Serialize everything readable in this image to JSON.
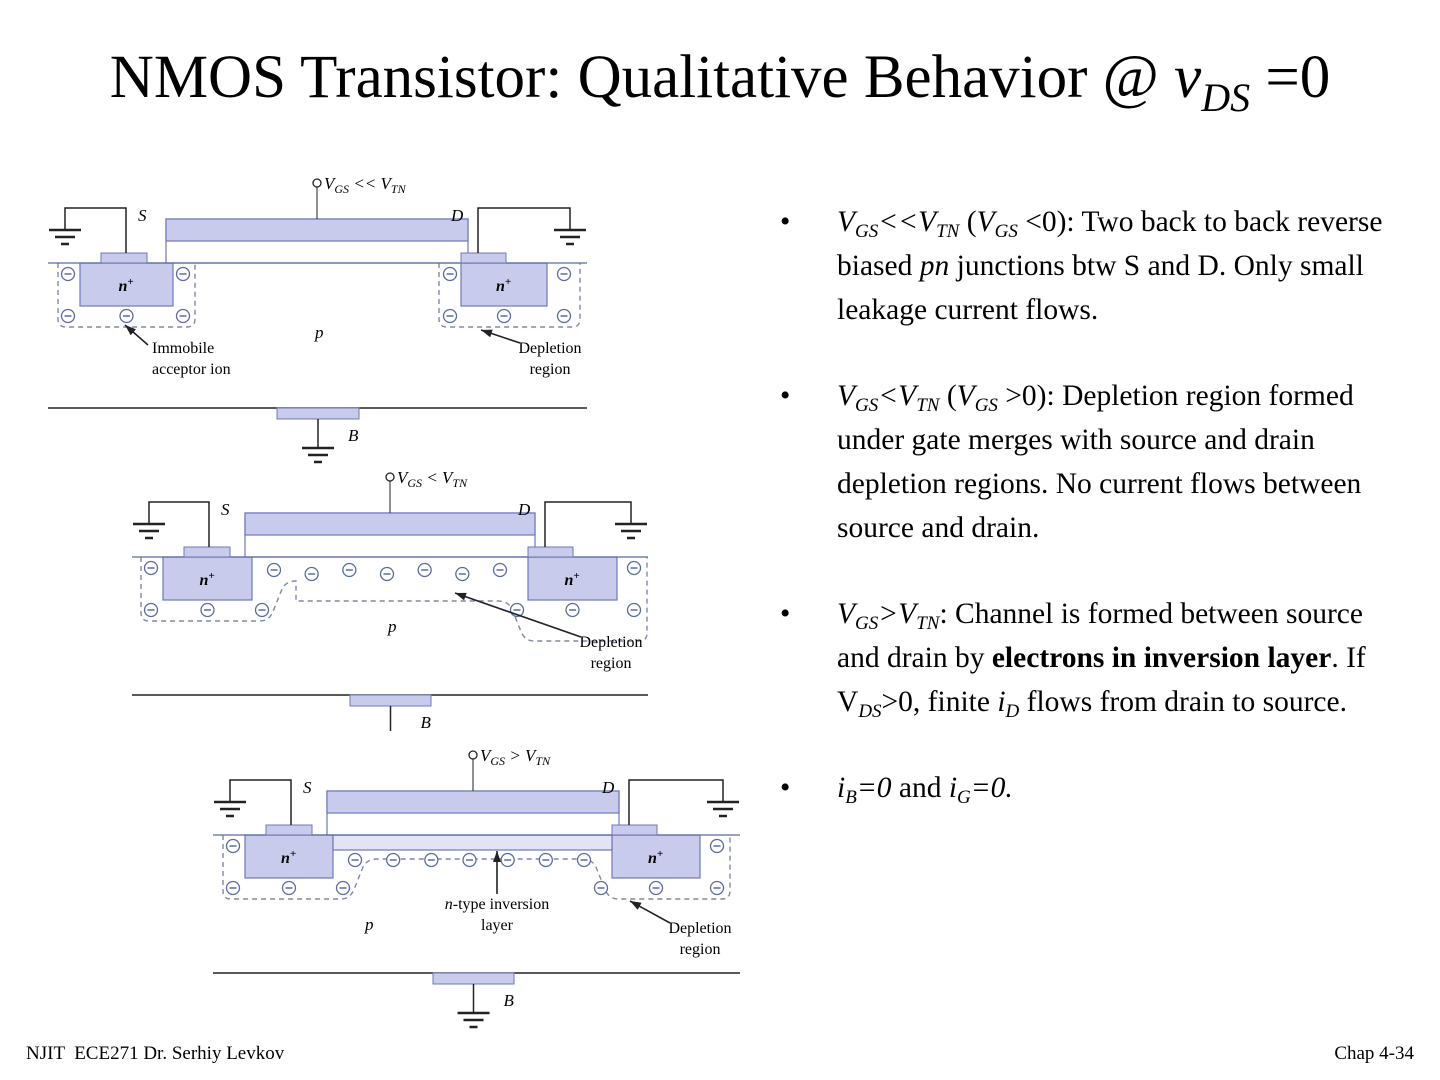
{
  "title": {
    "runs": [
      {
        "t": "NMOS Transistor: Qualitative Behavior @ ",
        "s": ""
      },
      {
        "t": "v",
        "s": "i"
      },
      {
        "t": "DS",
        "s": "isub"
      },
      {
        "t": " =0",
        "s": ""
      }
    ]
  },
  "bullets": [
    {
      "marker": "•",
      "runs": [
        {
          "t": "V",
          "s": "i"
        },
        {
          "t": "GS",
          "s": "isub"
        },
        {
          "t": "<<V",
          "s": "i"
        },
        {
          "t": "TN",
          "s": "isub"
        },
        {
          "t": "  (",
          "s": ""
        },
        {
          "t": "V",
          "s": "i"
        },
        {
          "t": "GS",
          "s": "isub"
        },
        {
          "t": " <0): Two back to back reverse biased ",
          "s": ""
        },
        {
          "t": "pn",
          "s": "i"
        },
        {
          "t": " junctions btw S and D. Only small leakage current flows.",
          "s": ""
        }
      ]
    },
    {
      "marker": "•",
      "runs": [
        {
          "t": "V",
          "s": "i"
        },
        {
          "t": "GS",
          "s": "isub"
        },
        {
          "t": "<V",
          "s": "i"
        },
        {
          "t": "TN",
          "s": "isub"
        },
        {
          "t": " (",
          "s": ""
        },
        {
          "t": "V",
          "s": "i"
        },
        {
          "t": "GS",
          "s": "isub"
        },
        {
          "t": " >0): Depletion region formed under gate merges with source and drain depletion regions. No current flows between source and drain.",
          "s": ""
        }
      ]
    },
    {
      "marker": "•",
      "runs": [
        {
          "t": "V",
          "s": "i"
        },
        {
          "t": "GS",
          "s": "isub"
        },
        {
          "t": ">V",
          "s": "i"
        },
        {
          "t": "TN",
          "s": "isub"
        },
        {
          "t": ": Channel is formed between source and drain by ",
          "s": ""
        },
        {
          "t": "electrons in inversion layer",
          "s": "b"
        },
        {
          "t": ". If V",
          "s": ""
        },
        {
          "t": "DS",
          "s": "isub"
        },
        {
          "t": ">0, finite ",
          "s": ""
        },
        {
          "t": "i",
          "s": "i"
        },
        {
          "t": "D",
          "s": "isub"
        },
        {
          "t": " flows from drain to source.",
          "s": ""
        }
      ]
    },
    {
      "marker": "•",
      "runs": [
        {
          "t": "i",
          "s": "i"
        },
        {
          "t": "B",
          "s": "isub"
        },
        {
          "t": "=0",
          "s": "i"
        },
        {
          "t": " and ",
          "s": ""
        },
        {
          "t": "i",
          "s": "i"
        },
        {
          "t": "G",
          "s": "isub"
        },
        {
          "t": "=0.",
          "s": "i"
        }
      ]
    }
  ],
  "diagrams": [
    {
      "gate": {
        "v": "V",
        "gs": "GS",
        "op": " << V",
        "tn": "TN"
      },
      "s": "S",
      "d": "D",
      "b": "B",
      "p": "p",
      "n": "n",
      "plus": "+",
      "ann_left": [
        "Immobile",
        "acceptor ion"
      ],
      "ann_right": [
        "Depletion",
        "region"
      ],
      "mode": "off"
    },
    {
      "gate": {
        "v": "V",
        "gs": "GS",
        "op": " < V",
        "tn": "TN"
      },
      "s": "S",
      "d": "D",
      "b": "B",
      "p": "p",
      "n": "n",
      "plus": "+",
      "ann_right": [
        "Depletion",
        "region"
      ],
      "mode": "depl"
    },
    {
      "gate": {
        "v": "V",
        "gs": "GS",
        "op": " > V",
        "tn": "TN"
      },
      "s": "S",
      "d": "D",
      "b": "B",
      "p": "p",
      "n": "n",
      "plus": "+",
      "ann_center": [
        "-type inversion",
        "layer"
      ],
      "ann_center_italic": "n",
      "ann_right": [
        "Depletion",
        "region"
      ],
      "mode": "inv"
    }
  ],
  "colors": {
    "fill": "#c8cbeb",
    "stroke": "#6e78b8",
    "line": "#5a6aa8",
    "dash": "#8088a8"
  },
  "footer": {
    "left": "NJIT  ECE271 Dr. Serhiy Levkov",
    "right": "Chap 4-34"
  }
}
